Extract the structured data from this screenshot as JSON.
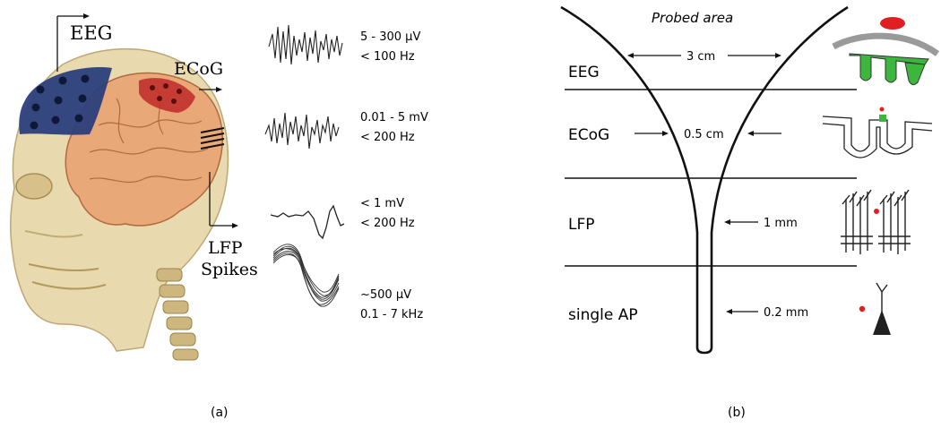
{
  "panel_a": {
    "caption": "(a)",
    "labels": {
      "eeg": "EEG",
      "ecog": "ECoG",
      "lfp": "LFP",
      "spikes": "Spikes"
    },
    "signals": [
      {
        "amplitude": "5 - 300 µV",
        "frequency": "< 100 Hz"
      },
      {
        "amplitude": "0.01 - 5 mV",
        "frequency": "< 200 Hz"
      },
      {
        "amplitude": "< 1 mV",
        "frequency": "< 200 Hz"
      },
      {
        "amplitude": "~500 µV",
        "frequency": "0.1 - 7 kHz"
      }
    ],
    "colors": {
      "eeg_region": "#2b3f7c",
      "ecog_region": "#c0302c",
      "brain": "#e8a878",
      "skull": "#d9c48e"
    }
  },
  "panel_b": {
    "caption": "(b)",
    "title": "Probed area",
    "rows": [
      {
        "label": "EEG",
        "size": "3 cm"
      },
      {
        "label": "ECoG",
        "size": "0.5 cm"
      },
      {
        "label": "LFP",
        "size": "1 mm"
      },
      {
        "label": "single AP",
        "size": "0.2 mm"
      }
    ],
    "colors": {
      "highlight": "#e02020",
      "cortex": "#3db63d",
      "skull_band": "#9a9a9a"
    }
  }
}
